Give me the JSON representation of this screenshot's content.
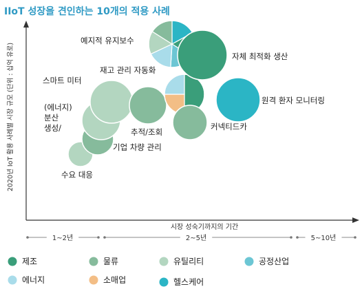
{
  "chart_data": {
    "type": "bubble",
    "title": "IIoT 성장을 견인하는 10개의 적용 사례",
    "xlabel": "시장 성숙기까지의 기간",
    "ylabel": "2020년 IoT 활용 사례별 시장 규모 (단위 : 십억 유로)",
    "x_bands": [
      "1~2년",
      "2~5년",
      "5~10년"
    ],
    "legend": [
      {
        "key": "manufacturing",
        "label": "제조",
        "color": "#3a9e7a"
      },
      {
        "key": "logistics",
        "label": "물류",
        "color": "#86bb9c"
      },
      {
        "key": "utility",
        "label": "유틸리티",
        "color": "#b3d6c0"
      },
      {
        "key": "process",
        "label": "공정산업",
        "color": "#6cc6d4"
      },
      {
        "key": "energy",
        "label": "에너지",
        "color": "#a9dcea"
      },
      {
        "key": "retail",
        "label": "소매업",
        "color": "#f3be86"
      },
      {
        "key": "healthcare",
        "label": "헬스케어",
        "color": "#2bb5c5"
      }
    ],
    "bubbles": [
      {
        "name": "수요 대응",
        "band": "1~2년",
        "size": "small",
        "segments": [
          {
            "sector": "utility",
            "share": 1
          }
        ]
      },
      {
        "name": "기업 차량 관리",
        "band": "2~5년",
        "size": "small",
        "segments": [
          {
            "sector": "logistics",
            "share": 1
          }
        ]
      },
      {
        "name": "(에너지) 분산 생성/ 저장",
        "band": "1~2년",
        "size": "medium",
        "segments": [
          {
            "sector": "utility",
            "share": 1
          }
        ]
      },
      {
        "name": "스마트 미터",
        "band": "1~2년",
        "size": "large",
        "segments": [
          {
            "sector": "utility",
            "share": 1
          }
        ]
      },
      {
        "name": "추적/조회",
        "band": "2~5년",
        "size": "medium",
        "segments": [
          {
            "sector": "logistics",
            "share": 1
          }
        ]
      },
      {
        "name": "재고 관리 자동화",
        "band": "2~5년",
        "size": "medium",
        "segments": [
          {
            "sector": "manufacturing",
            "share": 0.5
          },
          {
            "sector": "retail",
            "share": 0.25
          },
          {
            "sector": "energy",
            "share": 0.25
          }
        ]
      },
      {
        "name": "커넥티드카",
        "band": "2~5년",
        "size": "medium",
        "segments": [
          {
            "sector": "logistics",
            "share": 1
          }
        ]
      },
      {
        "name": "예지적 유지보수",
        "band": "2~5년",
        "size": "large",
        "segments": [
          {
            "sector": "healthcare",
            "share": 0.17
          },
          {
            "sector": "manufacturing",
            "share": 0.17
          },
          {
            "sector": "process",
            "share": 0.17
          },
          {
            "sector": "energy",
            "share": 0.17
          },
          {
            "sector": "utility",
            "share": 0.16
          },
          {
            "sector": "logistics",
            "share": 0.16
          }
        ]
      },
      {
        "name": "자체 최적화 생산",
        "band": "2~5년",
        "size": "large",
        "segments": [
          {
            "sector": "manufacturing",
            "share": 1
          }
        ]
      },
      {
        "name": "원격 환자 모니터링",
        "band": "2~5년",
        "size": "large",
        "segments": [
          {
            "sector": "healthcare",
            "share": 1
          }
        ]
      }
    ]
  }
}
